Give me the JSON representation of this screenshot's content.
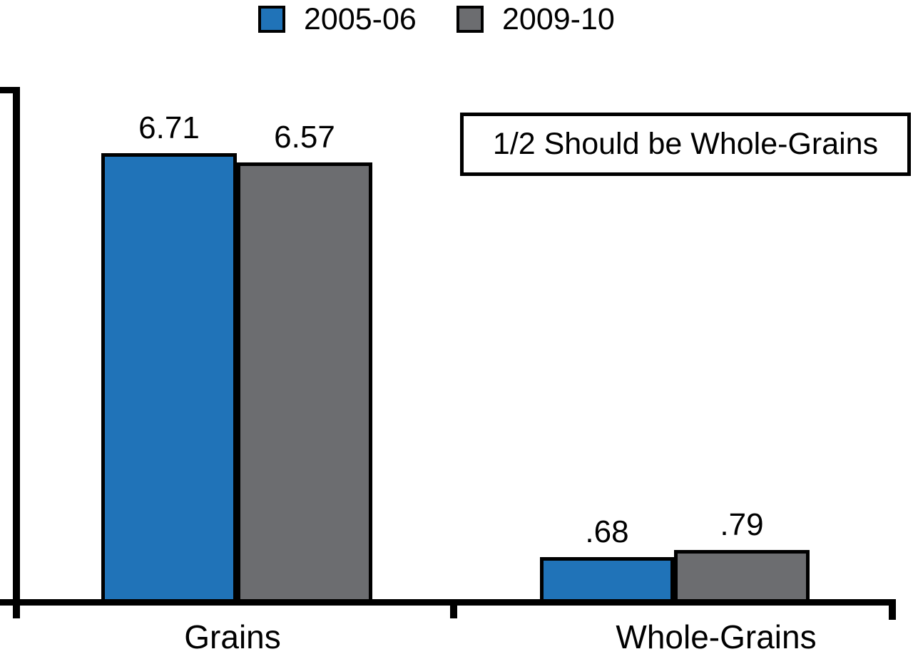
{
  "chart_data": {
    "type": "bar",
    "title": "",
    "xlabel": "",
    "ylabel": "",
    "categories": [
      "Grains",
      "Whole-Grains"
    ],
    "series": [
      {
        "name": "2005-06",
        "values": [
          6.71,
          0.68
        ],
        "display_values": [
          "6.71",
          ".68"
        ],
        "color": "#2073b8"
      },
      {
        "name": "2009-10",
        "values": [
          6.57,
          0.79
        ],
        "display_values": [
          "6.57",
          ".79"
        ],
        "color": "#6c6d70"
      }
    ],
    "annotation": "1/2 Should be Whole-Grains",
    "legend_position": "top-center",
    "ylim": [
      0,
      7.7
    ],
    "grid": false,
    "y_tick_labels_visible": false,
    "bar_border_color": "#000000"
  },
  "colors": {
    "background": "#ffffff",
    "axis": "#000000",
    "text": "#000000"
  }
}
